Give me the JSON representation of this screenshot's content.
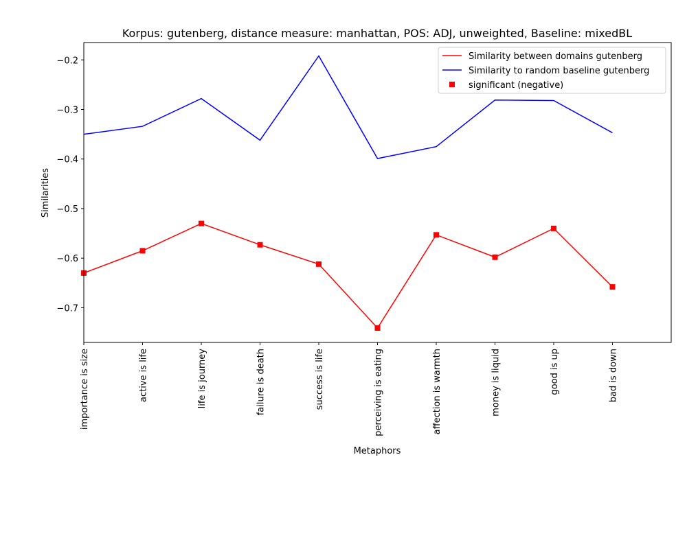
{
  "chart_data": {
    "type": "line",
    "title": "Korpus: gutenberg, distance measure: manhattan, POS: ADJ, unweighted, Baseline: mixedBL",
    "xlabel": "Metaphors",
    "ylabel": "Similarities",
    "categories": [
      "importance is size",
      "active is life",
      "life is journey",
      "failure is death",
      "success is life",
      "perceiving is eating",
      "affection is warmth",
      "money is liquid",
      "good is up",
      "bad is down"
    ],
    "xlim": [
      0,
      10
    ],
    "ylim": [
      -0.77,
      -0.165
    ],
    "yticks": [
      -0.2,
      -0.3,
      -0.4,
      -0.5,
      -0.6,
      -0.7
    ],
    "ytick_labels": [
      "−0.2",
      "−0.3",
      "−0.4",
      "−0.5",
      "−0.6",
      "−0.7"
    ],
    "grid": false,
    "legend_position": "top-right",
    "series": [
      {
        "name": "Similarity between domains gutenberg",
        "color": "#ff0000",
        "values": [
          -0.63,
          -0.585,
          -0.53,
          -0.573,
          -0.612,
          -0.741,
          -0.553,
          -0.598,
          -0.54,
          -0.658
        ]
      },
      {
        "name": "Similarity to random baseline gutenberg",
        "color": "#0000ff",
        "values": [
          -0.35,
          -0.334,
          -0.278,
          -0.362,
          -0.192,
          -0.399,
          -0.375,
          -0.281,
          -0.282,
          -0.347
        ]
      }
    ],
    "markers": {
      "name": "significant (negative)",
      "color": "#ff0000",
      "shape": "square",
      "indices": [
        0,
        1,
        2,
        3,
        4,
        5,
        6,
        7,
        8,
        9
      ]
    }
  }
}
